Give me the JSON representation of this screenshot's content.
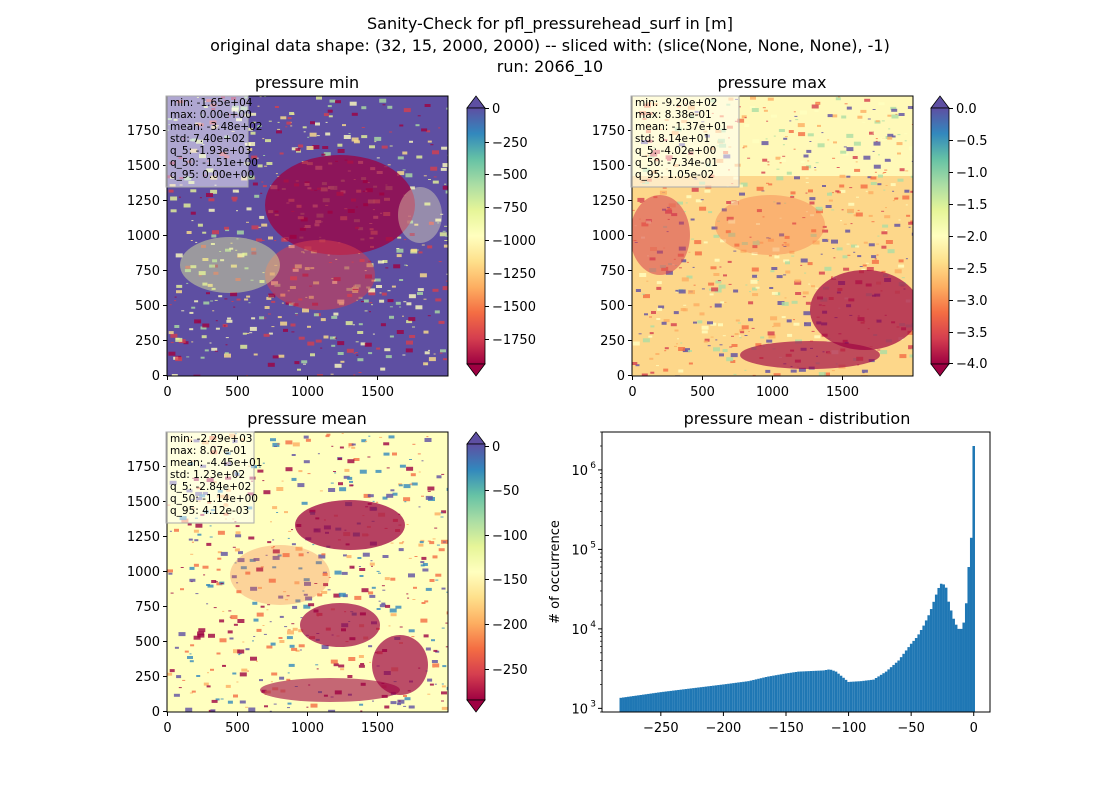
{
  "title_lines": [
    "Sanity-Check for pfl_pressurehead_surf in [m]",
    "original data shape: (32, 15, 2000, 2000) -- sliced with: (slice(None, None, None), -1)",
    "run: 2066_10"
  ],
  "chart_data": [
    {
      "type": "heatmap",
      "title": "pressure min",
      "colormap": "Spectral",
      "colormap_under_color": "#9e0142",
      "colormap_over_color": "#5e4fa2",
      "xlim": [
        0,
        2000
      ],
      "ylim": [
        0,
        2000
      ],
      "xticks": [
        0,
        500,
        1000,
        1500
      ],
      "yticks": [
        0,
        250,
        500,
        750,
        1000,
        1250,
        1500,
        1750
      ],
      "color_range": [
        -1900,
        0
      ],
      "colorbar_ticks": [
        0,
        -250,
        -500,
        -750,
        -1000,
        -1250,
        -1500,
        -1750
      ],
      "colorbar_labels": [
        "0",
        "−250",
        "−500",
        "−750",
        "−1000",
        "−1250",
        "−1500",
        "−1750"
      ],
      "stats": [
        "min: -1.65e+04",
        "max: 0.00e+00",
        "mean: -3.48e+02",
        "std: 7.40e+02",
        "q_5: -1.93e+03",
        "q_50: -1.51e+00",
        "q_95: 0.00e+00"
      ]
    },
    {
      "type": "heatmap",
      "title": "pressure max",
      "colormap": "Spectral",
      "colormap_under_color": "#9e0142",
      "colormap_over_color": "#5e4fa2",
      "xlim": [
        0,
        2000
      ],
      "ylim": [
        0,
        2000
      ],
      "xticks": [
        0,
        500,
        1000,
        1500
      ],
      "yticks": [
        0,
        250,
        500,
        750,
        1000,
        1250,
        1500,
        1750
      ],
      "color_range": [
        -4.0,
        0.0
      ],
      "colorbar_ticks": [
        0.0,
        -0.5,
        -1.0,
        -1.5,
        -2.0,
        -2.5,
        -3.0,
        -3.5,
        -4.0
      ],
      "colorbar_labels": [
        "0.0",
        "−0.5",
        "−1.0",
        "−1.5",
        "−2.0",
        "−2.5",
        "−3.0",
        "−3.5",
        "−4.0"
      ],
      "stats": [
        "min: -9.20e+02",
        "max: 8.38e-01",
        "mean: -1.37e+01",
        "std: 8.14e+01",
        "q_5: -4.02e+00",
        "q_50: -7.34e-01",
        "q_95: 1.05e-02"
      ]
    },
    {
      "type": "heatmap",
      "title": "pressure mean",
      "colormap": "Spectral",
      "colormap_under_color": "#9e0142",
      "colormap_over_color": "#5e4fa2",
      "xlim": [
        0,
        2000
      ],
      "ylim": [
        0,
        2000
      ],
      "xticks": [
        0,
        500,
        1000,
        1500
      ],
      "yticks": [
        0,
        250,
        500,
        750,
        1000,
        1250,
        1500,
        1750
      ],
      "color_range": [
        -284,
        0
      ],
      "colorbar_ticks": [
        0,
        -50,
        -100,
        -150,
        -200,
        -250
      ],
      "colorbar_labels": [
        "0",
        "−50",
        "−100",
        "−150",
        "−200",
        "−250"
      ],
      "stats": [
        "min: -2.29e+03",
        "max: 8.07e-01",
        "mean: -4.45e+01",
        "std: 1.23e+02",
        "q_5: -2.84e+02",
        "q_50: -1.14e+00",
        "q_95: 4.12e-03"
      ]
    },
    {
      "type": "bar",
      "title": "pressure mean - distribution",
      "ylabel": "# of occurrence",
      "yscale": "log",
      "xlim": [
        -297,
        13
      ],
      "ylim": [
        900,
        3000000
      ],
      "xticks": [
        -250,
        -200,
        -150,
        -100,
        -50,
        0
      ],
      "xtick_labels": [
        "−250",
        "−200",
        "−150",
        "−100",
        "−50",
        "0"
      ],
      "yticks": [
        1000,
        10000,
        100000,
        1000000
      ],
      "ytick_labels": [
        "10",
        "10",
        "10",
        "10"
      ],
      "ytick_exponents": [
        "3",
        "4",
        "5",
        "6"
      ],
      "bar_color": "#1f77b4",
      "x": [
        -283,
        -250,
        -230,
        -200,
        -180,
        -165,
        -150,
        -140,
        -130,
        -120,
        -115,
        -110,
        -105,
        -100,
        -90,
        -80,
        -70,
        -60,
        -50,
        -45,
        -40,
        -35,
        -30,
        -27,
        -25,
        -22,
        -20,
        -17,
        -15,
        -12,
        -10,
        -8,
        -6,
        -4,
        -2,
        -1,
        0
      ],
      "values": [
        1350,
        1600,
        1750,
        2000,
        2200,
        2500,
        2750,
        2900,
        2950,
        3000,
        3100,
        2900,
        2500,
        2150,
        2200,
        2300,
        2900,
        4000,
        6500,
        8000,
        11000,
        16000,
        27000,
        36000,
        38000,
        33000,
        22000,
        15000,
        12000,
        10000,
        10000,
        12000,
        21000,
        60000,
        140000,
        430000,
        2000000
      ]
    }
  ]
}
